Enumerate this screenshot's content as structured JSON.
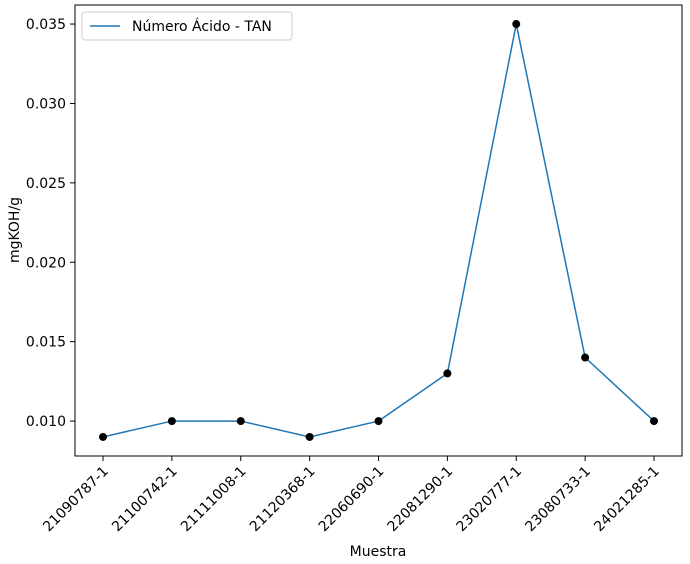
{
  "chart_data": {
    "type": "line",
    "title": "",
    "xlabel": "Muestra",
    "ylabel": "mgKOH/g",
    "categories": [
      "21090787-1",
      "21100742-1",
      "21111008-1",
      "21120368-1",
      "22060690-1",
      "22081290-1",
      "23020777-1",
      "23080733-1",
      "24021285-1"
    ],
    "series": [
      {
        "name": "Número Ácido - TAN",
        "values": [
          0.009,
          0.01,
          0.01,
          0.009,
          0.01,
          0.013,
          0.035,
          0.014,
          0.01
        ],
        "line_color": "#1f77b4",
        "marker_color": "#000000"
      }
    ],
    "ylim": [
      0.0078,
      0.0362
    ],
    "yticks": [
      "0.010",
      "0.015",
      "0.020",
      "0.025",
      "0.030",
      "0.035"
    ],
    "grid": false,
    "legend_position": "upper-left"
  }
}
